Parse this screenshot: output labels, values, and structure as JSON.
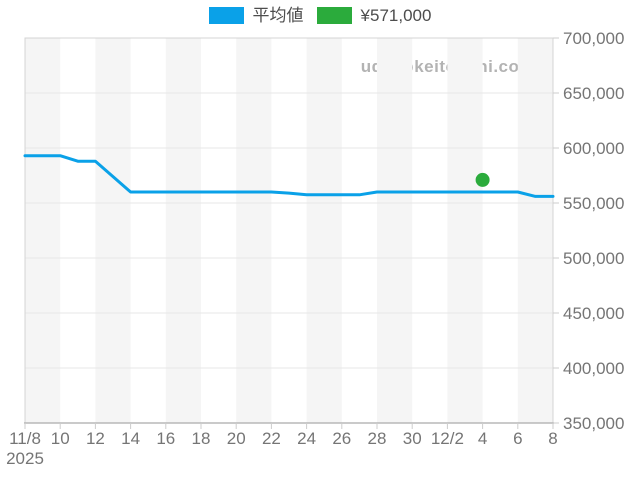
{
  "site_watermark": "udedokeitoushi.com",
  "legend": {
    "items": [
      {
        "label": "平均値",
        "color": "#0aa1e8"
      },
      {
        "label": "¥571,000",
        "color": "#2bab3c"
      }
    ]
  },
  "chart_data": {
    "type": "line",
    "title": "",
    "xlabel": "",
    "ylabel": "",
    "x": [
      "11/8",
      "11/9",
      "11/10",
      "11/11",
      "11/12",
      "11/13",
      "11/14",
      "11/15",
      "11/16",
      "11/17",
      "11/18",
      "11/19",
      "11/20",
      "11/21",
      "11/22",
      "11/23",
      "11/24",
      "11/25",
      "11/26",
      "11/27",
      "11/28",
      "11/29",
      "11/30",
      "12/1",
      "12/2",
      "12/3",
      "12/4",
      "12/5",
      "12/6",
      "12/7",
      "12/8"
    ],
    "series": [
      {
        "name": "平均値",
        "color": "#0aa1e8",
        "values": [
          593000,
          593000,
          593000,
          588000,
          588000,
          574000,
          560000,
          560000,
          560000,
          560000,
          560000,
          560000,
          560000,
          560000,
          560000,
          559000,
          557500,
          557500,
          557500,
          557500,
          560000,
          560000,
          560000,
          560000,
          560000,
          560000,
          560000,
          560000,
          560000,
          556000,
          556000
        ]
      }
    ],
    "point_marker": {
      "x": "12/4",
      "value": 571000,
      "color": "#2bab3c",
      "label": "¥571,000"
    },
    "x_tick_labels": [
      "11/8",
      "10",
      "12",
      "14",
      "16",
      "18",
      "20",
      "22",
      "24",
      "26",
      "28",
      "30",
      "12/2",
      "4",
      "6",
      "8"
    ],
    "year_label": "2025",
    "ylim": [
      350000,
      700000
    ],
    "y_tick_step": 50000,
    "y_tick_labels": [
      "350,000",
      "400,000",
      "450,000",
      "500,000",
      "550,000",
      "600,000",
      "650,000",
      "700,000"
    ],
    "grid": "horizontal",
    "background_stripes": true,
    "stripe_color": "#f5f5f5",
    "legend_position": "top-center"
  }
}
